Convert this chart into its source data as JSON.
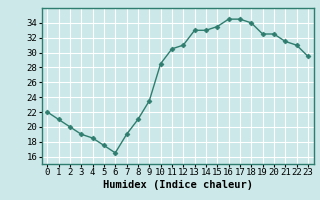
{
  "x": [
    0,
    1,
    2,
    3,
    4,
    5,
    6,
    7,
    8,
    9,
    10,
    11,
    12,
    13,
    14,
    15,
    16,
    17,
    18,
    19,
    20,
    21,
    22,
    23
  ],
  "y": [
    22,
    21,
    20,
    19,
    18.5,
    17.5,
    16.5,
    19,
    21,
    23.5,
    28.5,
    30.5,
    31,
    33,
    33,
    33.5,
    34.5,
    34.5,
    34,
    32.5,
    32.5,
    31.5,
    31,
    29.5
  ],
  "line_color": "#2e7d6e",
  "marker": "D",
  "marker_size": 2.5,
  "bg_color": "#cce8e8",
  "grid_color": "#ffffff",
  "xlabel": "Humidex (Indice chaleur)",
  "xlim": [
    -0.5,
    23.5
  ],
  "ylim": [
    15,
    36
  ],
  "yticks": [
    16,
    18,
    20,
    22,
    24,
    26,
    28,
    30,
    32,
    34
  ],
  "xticks": [
    0,
    1,
    2,
    3,
    4,
    5,
    6,
    7,
    8,
    9,
    10,
    11,
    12,
    13,
    14,
    15,
    16,
    17,
    18,
    19,
    20,
    21,
    22,
    23
  ],
  "xlabel_fontsize": 7.5,
  "tick_fontsize": 6.5,
  "line_width": 1.0,
  "spine_color": "#2e7d6e"
}
